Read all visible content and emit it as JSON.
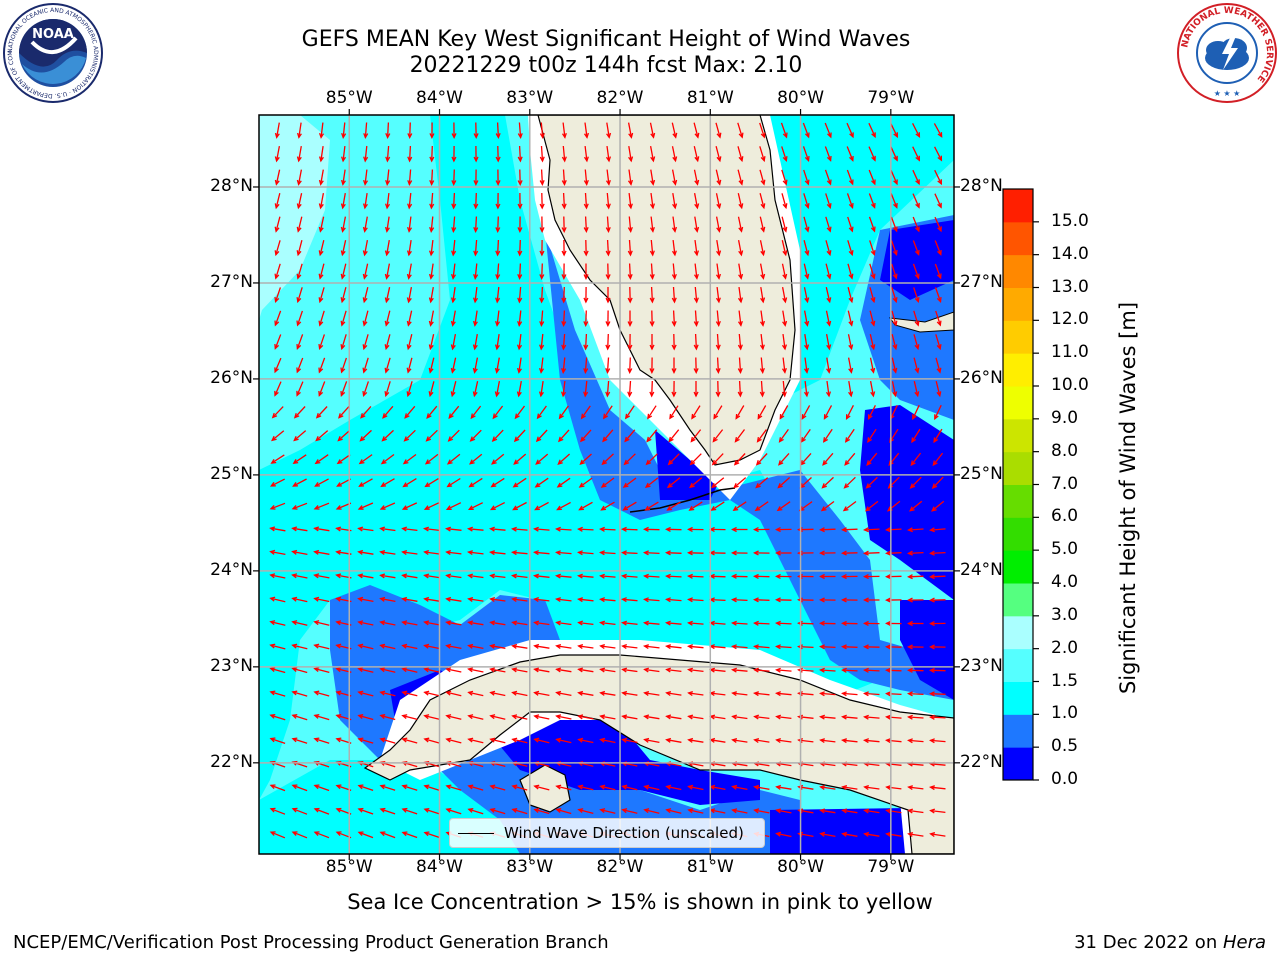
{
  "title": {
    "line1": "GEFS MEAN Key West Significant Height of Wind Waves",
    "line2": "20221229 t00z 144h fcst   Max: 2.10"
  },
  "map": {
    "lon_ticks": [
      "85°W",
      "84°W",
      "83°W",
      "82°W",
      "81°W",
      "80°W",
      "79°W"
    ],
    "lon_values": [
      -85,
      -84,
      -83,
      -82,
      -81,
      -80,
      -79
    ],
    "lat_ticks": [
      "28°N",
      "27°N",
      "26°N",
      "25°N",
      "24°N",
      "23°N",
      "22°N"
    ],
    "lat_values": [
      28,
      27,
      26,
      25,
      24,
      23,
      22
    ],
    "lon_range": [
      -86.0,
      -78.3
    ],
    "lat_range": [
      21.05,
      28.75
    ],
    "legend_label": "Wind Wave Direction (unscaled)",
    "arrow_color": "#ff0000",
    "land_color": "#eeeddc",
    "grid_color": "#b0b0b0"
  },
  "colorbar": {
    "title": "Significant Height of Wind Waves [m]",
    "tick_labels": [
      "0.0",
      "0.5",
      "1.0",
      "1.5",
      "2.0",
      "3.0",
      "4.0",
      "5.0",
      "6.0",
      "7.0",
      "8.0",
      "9.0",
      "10.0",
      "11.0",
      "12.0",
      "13.0",
      "14.0",
      "15.0"
    ],
    "colors": [
      "#0000ff",
      "#1e78ff",
      "#00ffff",
      "#55ffff",
      "#aaffff",
      "#55ff80",
      "#00ee00",
      "#33dd00",
      "#66dd00",
      "#aadd00",
      "#cce500",
      "#eeff00",
      "#ffee00",
      "#ffcc00",
      "#ffaa00",
      "#ff8800",
      "#ff5500",
      "#ff1f00"
    ]
  },
  "note": "Sea Ice Concentration > 15% is shown in pink to yellow",
  "footer": {
    "left": "NCEP/EMC/Verification Post Processing Product Generation Branch",
    "right_date": "31 Dec 2022 on ",
    "right_host": "Hera"
  },
  "logos": {
    "noaa_text": "NOAA",
    "noaa_ring": "NATIONAL OCEANIC AND ATMOSPHERIC ADMINISTRATION · U.S. DEPARTMENT OF COMMERCE",
    "nws_ring": "NATIONAL WEATHER SERVICE"
  }
}
